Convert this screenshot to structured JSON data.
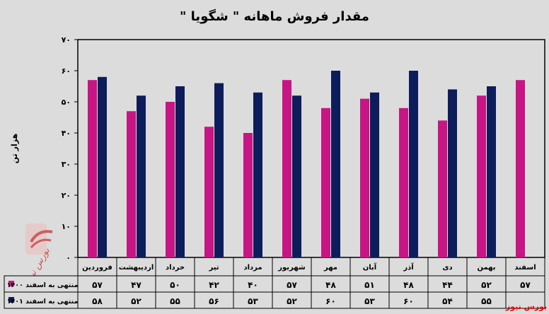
{
  "chart_data": {
    "type": "bar",
    "title": "مقدار فروش ماهانه \" شگویا \"",
    "ylabel": "هزار تن",
    "ylim": [
      0,
      70
    ],
    "yticks": [
      "۰",
      "۱۰",
      "۲۰",
      "۳۰",
      "۴۰",
      "۵۰",
      "۶۰",
      "۷۰"
    ],
    "grid": false,
    "categories": [
      "فروردین",
      "اردیبهشت",
      "خرداد",
      "تیر",
      "مرداد",
      "شهریور",
      "مهر",
      "آبان",
      "آذر",
      "دی",
      "بهمن",
      "اسفند"
    ],
    "series": [
      {
        "name": "منتهی به اسفند ۱۴۰۰",
        "color": "#c71585",
        "values": [
          57,
          47,
          50,
          42,
          40,
          57,
          48,
          51,
          48,
          44,
          52,
          57
        ],
        "labels": [
          "۵۷",
          "۴۷",
          "۵۰",
          "۴۲",
          "۴۰",
          "۵۷",
          "۴۸",
          "۵۱",
          "۴۸",
          "۴۴",
          "۵۲",
          "۵۷"
        ]
      },
      {
        "name": "منتهی به اسفند ۱۴۰۱",
        "color": "#0d1d5c",
        "values": [
          58,
          52,
          55,
          56,
          53,
          52,
          60,
          53,
          60,
          54,
          55,
          null
        ],
        "labels": [
          "۵۸",
          "۵۲",
          "۵۵",
          "۵۶",
          "۵۳",
          "۵۲",
          "۶۰",
          "۵۳",
          "۶۰",
          "۵۴",
          "۵۵",
          ""
        ]
      }
    ],
    "legend": "data-table-left"
  },
  "watermark": {
    "text": "بورس نیوز",
    "brand": "بورس نیوز",
    "logo_color": "#c94a4a"
  }
}
